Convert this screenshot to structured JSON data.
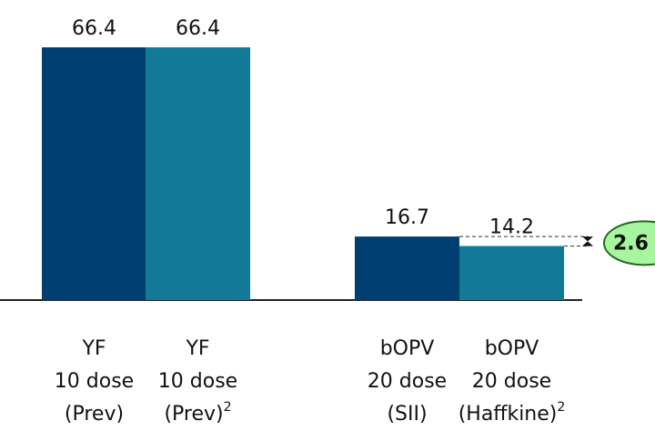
{
  "chart_data": {
    "type": "bar",
    "categories": [
      [
        "YF",
        "10 dose",
        "(Prev)"
      ],
      [
        "YF",
        "10 dose",
        "(Prev)"
      ],
      [
        "bOPV",
        "20 dose",
        "(SII)"
      ],
      [
        "bOPV",
        "20 dose",
        "(Haffkine)"
      ]
    ],
    "category_footnotes": [
      null,
      "2",
      null,
      "2"
    ],
    "values": [
      66.4,
      66.4,
      16.7,
      14.2
    ],
    "colors": [
      "#003f72",
      "#127a96",
      "#003f72",
      "#127a96"
    ],
    "ylim": [
      0,
      70
    ],
    "annotation": {
      "text": "2.6",
      "between": [
        2,
        3
      ],
      "color": "#a8f5a0",
      "border": "#1c6b1c"
    }
  }
}
